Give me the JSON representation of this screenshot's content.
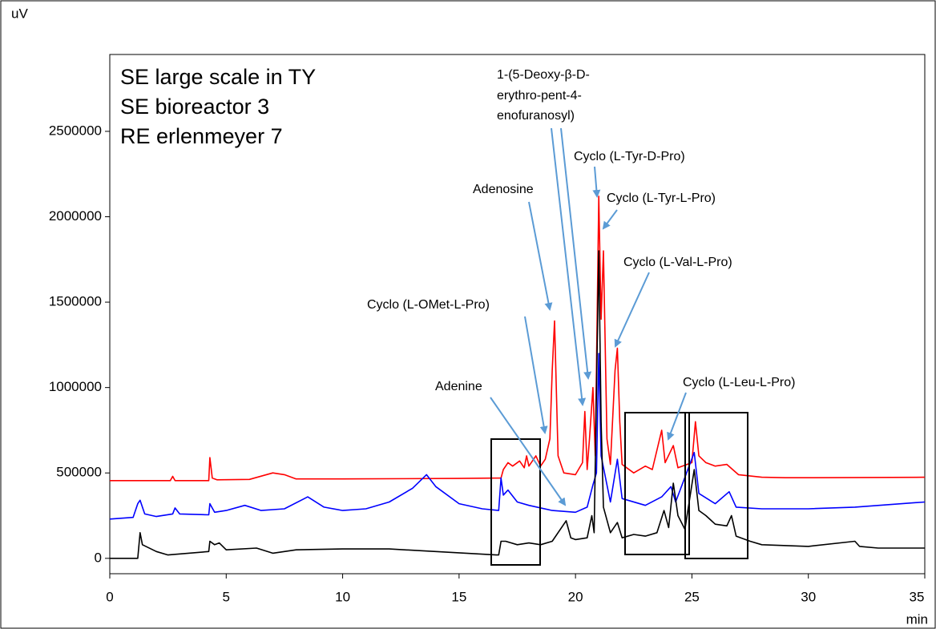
{
  "chart_data": {
    "type": "line",
    "x_label": "min",
    "y_label": "uV",
    "xlim": [
      0,
      35
    ],
    "ylim": [
      -90000,
      2950000
    ],
    "xticks": [
      0,
      5,
      10,
      15,
      20,
      25,
      30,
      35
    ],
    "yticks": [
      0,
      500000,
      1000000,
      1500000,
      2000000,
      2500000
    ],
    "series": [
      {
        "name": "SE large scale in TY",
        "color": "#ff0000",
        "x": [
          0,
          2.6,
          2.7,
          2.8,
          4.25,
          4.3,
          4.4,
          4.6,
          6,
          7,
          7.5,
          8,
          10,
          15,
          16.8,
          16.9,
          17.1,
          17.3,
          17.6,
          17.8,
          17.9,
          18,
          18.3,
          18.5,
          18.7,
          18.9,
          19.0,
          19.1,
          19.25,
          19.5,
          20.0,
          20.3,
          20.4,
          20.5,
          20.6,
          20.75,
          20.85,
          21.0,
          21.1,
          21.2,
          21.35,
          21.5,
          21.7,
          21.8,
          21.9,
          22.0,
          22.5,
          23,
          23.3,
          23.7,
          23.85,
          24.2,
          24.4,
          25.0,
          25.15,
          25.3,
          25.6,
          26.0,
          26.5,
          27.0,
          28,
          29,
          30,
          35
        ],
        "values": [
          455000,
          455000,
          480000,
          455000,
          455000,
          590000,
          470000,
          460000,
          462000,
          500000,
          490000,
          465000,
          465000,
          468000,
          470000,
          520000,
          560000,
          540000,
          570000,
          530000,
          600000,
          540000,
          600000,
          540000,
          580000,
          700000,
          1100000,
          1390000,
          600000,
          500000,
          490000,
          560000,
          860000,
          520000,
          700000,
          1000000,
          600000,
          2120000,
          1400000,
          1800000,
          700000,
          550000,
          1100000,
          1230000,
          800000,
          550000,
          500000,
          540000,
          520000,
          750000,
          560000,
          660000,
          530000,
          560000,
          800000,
          600000,
          560000,
          540000,
          550000,
          490000,
          475000,
          472000,
          472000,
          475000
        ]
      },
      {
        "name": "SE bioreactor 3",
        "color": "#0000ff",
        "x": [
          0,
          1.0,
          1.2,
          1.3,
          1.5,
          2.0,
          2.7,
          2.8,
          3.0,
          4.25,
          4.3,
          4.5,
          5,
          5.8,
          6.5,
          7.5,
          8.5,
          9.2,
          10,
          11,
          12,
          13,
          13.6,
          14,
          15,
          16,
          16.7,
          16.8,
          16.9,
          17.1,
          17.5,
          18,
          19,
          20,
          20.5,
          20.75,
          20.9,
          21.0,
          21.1,
          21.5,
          21.8,
          22.0,
          23,
          23.7,
          24.1,
          24.3,
          25.1,
          25.3,
          26,
          26.6,
          26.9,
          28,
          30,
          32,
          35
        ],
        "values": [
          230000,
          240000,
          320000,
          340000,
          260000,
          245000,
          260000,
          295000,
          260000,
          255000,
          320000,
          270000,
          280000,
          310000,
          280000,
          290000,
          360000,
          300000,
          280000,
          290000,
          330000,
          410000,
          490000,
          420000,
          320000,
          290000,
          280000,
          470000,
          370000,
          400000,
          330000,
          310000,
          280000,
          270000,
          300000,
          430000,
          500000,
          1200000,
          600000,
          330000,
          580000,
          350000,
          310000,
          360000,
          420000,
          330000,
          620000,
          380000,
          320000,
          390000,
          300000,
          290000,
          290000,
          300000,
          330000
        ]
      },
      {
        "name": "RE erlenmeyer 7",
        "color": "#000000",
        "x": [
          0,
          1.2,
          1.3,
          1.4,
          2,
          2.5,
          4.25,
          4.3,
          4.5,
          4.7,
          5,
          6.3,
          7,
          8,
          10,
          12,
          16.6,
          16.7,
          16.8,
          17,
          17.5,
          18,
          18.5,
          19,
          19.6,
          19.8,
          20,
          20.5,
          20.7,
          20.8,
          21.0,
          21.1,
          21.2,
          21.5,
          21.8,
          22,
          22.5,
          23,
          23.5,
          23.8,
          24.0,
          24.2,
          24.4,
          24.7,
          25.1,
          25.3,
          25.6,
          26,
          26.5,
          26.7,
          26.9,
          27.5,
          28,
          30,
          32,
          32.2,
          33,
          35
        ],
        "values": [
          0,
          0,
          150000,
          80000,
          40000,
          20000,
          40000,
          100000,
          80000,
          90000,
          50000,
          60000,
          30000,
          50000,
          55000,
          55000,
          20000,
          20000,
          100000,
          100000,
          80000,
          90000,
          80000,
          100000,
          220000,
          120000,
          110000,
          120000,
          250000,
          150000,
          1800000,
          800000,
          300000,
          150000,
          210000,
          120000,
          140000,
          130000,
          150000,
          280000,
          180000,
          440000,
          250000,
          170000,
          520000,
          280000,
          250000,
          200000,
          190000,
          250000,
          130000,
          100000,
          80000,
          70000,
          100000,
          70000,
          60000,
          60000
        ]
      }
    ],
    "annotations": [
      [
        "1-(5-Deoxy-β-D-",
        "erythro-pent-4-",
        "enofuranosyl)"
      ],
      "Cyclo (L-Tyr-D-Pro)",
      "Adenosine",
      "Cyclo (L-Tyr-L-Pro)",
      "Cyclo (L-Val-L-Pro)",
      "Cyclo (L-OMet-L-Pro)",
      "Adenine",
      "Cyclo (L-Leu-L-Pro)"
    ]
  }
}
